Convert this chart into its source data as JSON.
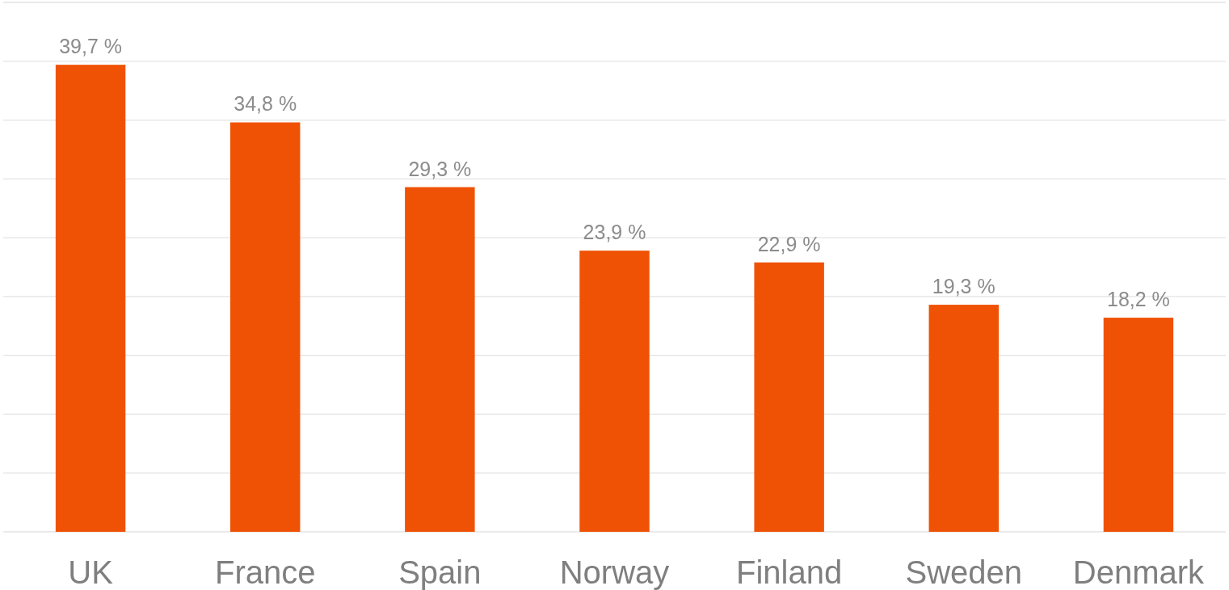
{
  "chart_data": {
    "type": "bar",
    "categories": [
      "UK",
      "France",
      "Spain",
      "Norway",
      "Finland",
      "Sweden",
      "Denmark"
    ],
    "values": [
      39.7,
      34.8,
      29.3,
      23.9,
      22.9,
      19.3,
      18.2
    ],
    "value_labels": [
      "39,7 %",
      "34,8 %",
      "29,3 %",
      "23,9 %",
      "22,9 %",
      "19,3 %",
      "18,2 %"
    ],
    "color": "#f05205",
    "ylim": [
      0,
      45
    ],
    "yticks": [
      {
        "value": 0,
        "label": null
      },
      {
        "value": 5,
        "label": null
      },
      {
        "value": 10,
        "label": null
      },
      {
        "value": 15,
        "label": null
      },
      {
        "value": 20,
        "label": null
      },
      {
        "value": 25,
        "label": null
      },
      {
        "value": 30,
        "label": null
      },
      {
        "value": 35,
        "label": null
      },
      {
        "value": 40,
        "label": null
      },
      {
        "value": 45,
        "label": null
      }
    ],
    "grid": "y",
    "tick_labels": "x"
  }
}
